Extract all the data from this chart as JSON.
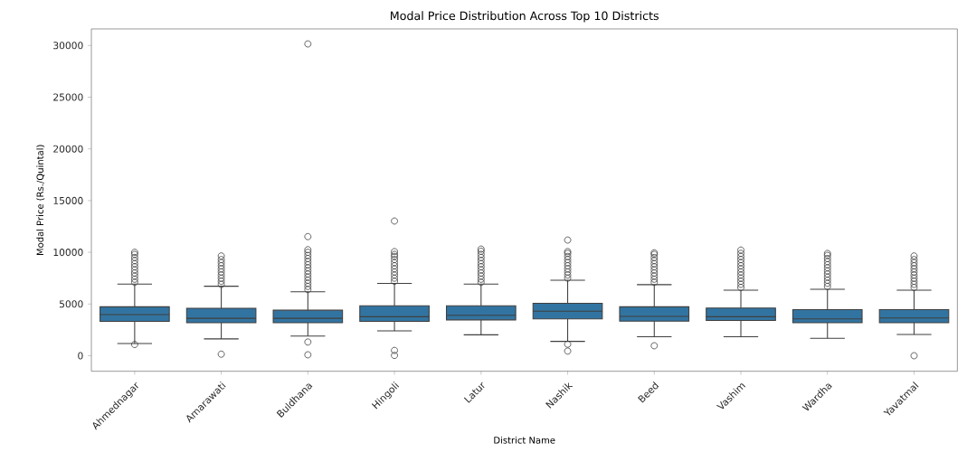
{
  "chart_data": {
    "type": "box",
    "title": "Modal Price Distribution Across Top 10 Districts",
    "xlabel": "District Name",
    "ylabel": "Modal Price (Rs./Quintal)",
    "categories": [
      "Ahmednagar",
      "Amarawati",
      "Buldhana",
      "Hingoli",
      "Latur",
      "Nashik",
      "Beed",
      "Vashim",
      "Wardha",
      "Yavatmal"
    ],
    "color": "#3274a1",
    "boxes": [
      {
        "low": 1176,
        "q1": 3317,
        "median": 3980,
        "q3": 4733,
        "high": 6935,
        "outliers": [
          1085,
          7100,
          7400,
          7700,
          8000,
          8300,
          8600,
          8900,
          9200,
          9500,
          9800,
          10000
        ]
      },
      {
        "low": 1628,
        "q1": 3196,
        "median": 3618,
        "q3": 4583,
        "high": 6723,
        "outliers": [
          150,
          6900,
          7200,
          7500,
          7800,
          8100,
          8400,
          8700,
          9000,
          9300,
          9648
        ]
      },
      {
        "low": 1900,
        "q1": 3196,
        "median": 3618,
        "q3": 4402,
        "high": 6181,
        "outliers": [
          90,
          1327,
          6400,
          6700,
          7000,
          7300,
          7600,
          7900,
          8200,
          8500,
          8800,
          9100,
          9400,
          9700,
          10000,
          10251,
          11517,
          30150
        ]
      },
      {
        "low": 2412,
        "q1": 3317,
        "median": 3769,
        "q3": 4824,
        "high": 6995,
        "outliers": [
          30,
          513,
          7200,
          7500,
          7800,
          8100,
          8400,
          8700,
          9000,
          9300,
          9600,
          9800,
          10070,
          13025
        ]
      },
      {
        "low": 2020,
        "q1": 3467,
        "median": 3920,
        "q3": 4824,
        "high": 6935,
        "outliers": [
          7100,
          7400,
          7700,
          8000,
          8300,
          8600,
          8900,
          9200,
          9500,
          9800,
          10100,
          10311
        ]
      },
      {
        "low": 1387,
        "q1": 3558,
        "median": 4311,
        "q3": 5065,
        "high": 7296,
        "outliers": [
          452,
          1115,
          7500,
          7800,
          8100,
          8400,
          8700,
          9000,
          9300,
          9600,
          9900,
          10070,
          11186
        ]
      },
      {
        "low": 1839,
        "q1": 3347,
        "median": 3799,
        "q3": 4733,
        "high": 6874,
        "outliers": [
          965,
          7100,
          7400,
          7700,
          8000,
          8300,
          8600,
          8900,
          9200,
          9500,
          9800,
          9950
        ]
      },
      {
        "low": 1839,
        "q1": 3407,
        "median": 3769,
        "q3": 4613,
        "high": 6331,
        "outliers": [
          6600,
          6900,
          7200,
          7500,
          7800,
          8100,
          8400,
          8700,
          9000,
          9300,
          9600,
          9900,
          10220
        ]
      },
      {
        "low": 1688,
        "q1": 3196,
        "median": 3558,
        "q3": 4462,
        "high": 6422,
        "outliers": [
          6700,
          7000,
          7300,
          7600,
          7900,
          8200,
          8500,
          8800,
          9100,
          9400,
          9700,
          9889
        ]
      },
      {
        "low": 2050,
        "q1": 3196,
        "median": 3648,
        "q3": 4462,
        "high": 6331,
        "outliers": [
          0,
          6600,
          6900,
          7200,
          7500,
          7800,
          8100,
          8400,
          8700,
          9000,
          9300,
          9648
        ]
      }
    ],
    "ylim": [
      -1500,
      31600
    ],
    "yticks": [
      0,
      5000,
      10000,
      15000,
      20000,
      25000,
      30000
    ]
  }
}
